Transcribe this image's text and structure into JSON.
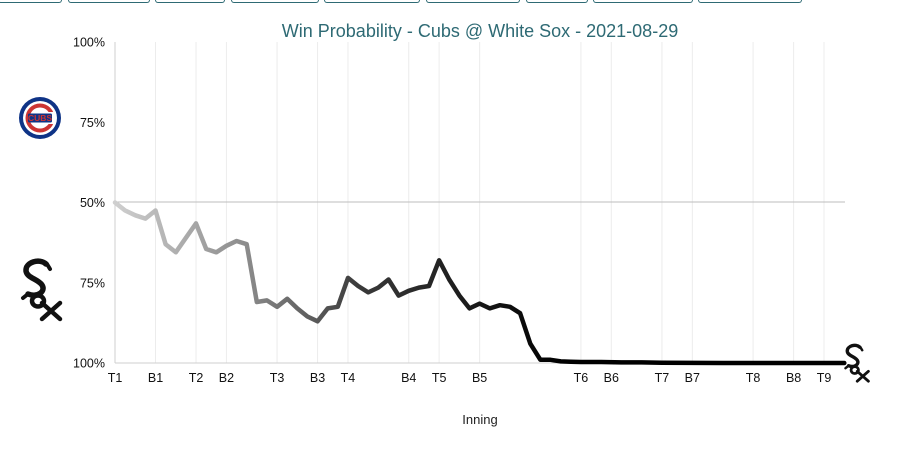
{
  "chart_data": {
    "type": "line",
    "title": "Win Probability - Cubs @ White Sox - 2021-08-29",
    "xlabel": "Inning",
    "ylabel": "",
    "yticks": [
      "100%",
      "75%",
      "50%",
      "75%",
      "100%"
    ],
    "ylim": [
      -50,
      50
    ],
    "xlim": [
      0,
      70
    ],
    "grid": "vertical at half-innings",
    "legend": "team logos at left (Cubs top, White Sox bottom); White Sox logo at line end",
    "xticks": [
      {
        "x": 0,
        "label": "T1"
      },
      {
        "x": 4,
        "label": "B1"
      },
      {
        "x": 8,
        "label": "T2"
      },
      {
        "x": 11,
        "label": "B2"
      },
      {
        "x": 16,
        "label": "T3"
      },
      {
        "x": 20,
        "label": "B3"
      },
      {
        "x": 23,
        "label": "T4"
      },
      {
        "x": 29,
        "label": "B4"
      },
      {
        "x": 32,
        "label": "T5"
      },
      {
        "x": 36,
        "label": "B5"
      },
      {
        "x": 46,
        "label": "T6"
      },
      {
        "x": 49,
        "label": "B6"
      },
      {
        "x": 54,
        "label": "T7"
      },
      {
        "x": 57,
        "label": "B7"
      },
      {
        "x": 63,
        "label": "T8"
      },
      {
        "x": 67,
        "label": "B8"
      },
      {
        "x": 70,
        "label": "T9"
      }
    ],
    "series": [
      {
        "values": [
          [
            0,
            0
          ],
          [
            1,
            -2.5
          ],
          [
            2,
            -4
          ],
          [
            3,
            -5
          ],
          [
            4,
            -2.5
          ],
          [
            5,
            -13
          ],
          [
            6,
            -15.5
          ],
          [
            7,
            -11
          ],
          [
            8,
            -6.5
          ],
          [
            9,
            -14.5
          ],
          [
            10,
            -15.5
          ],
          [
            11,
            -13.5
          ],
          [
            12,
            -12
          ],
          [
            13,
            -13
          ],
          [
            14,
            -31
          ],
          [
            15,
            -30.5
          ],
          [
            16,
            -32.5
          ],
          [
            17,
            -30
          ],
          [
            18,
            -33
          ],
          [
            19,
            -35.5
          ],
          [
            20,
            -37
          ],
          [
            21,
            -33
          ],
          [
            22,
            -32.5
          ],
          [
            23,
            -23.5
          ],
          [
            24,
            -26
          ],
          [
            25,
            -28
          ],
          [
            26,
            -26.5
          ],
          [
            27,
            -24
          ],
          [
            28,
            -29
          ],
          [
            29,
            -27.5
          ],
          [
            30,
            -26.5
          ],
          [
            31,
            -26
          ],
          [
            32,
            -18
          ],
          [
            33,
            -24
          ],
          [
            34,
            -29
          ],
          [
            35,
            -33
          ],
          [
            36,
            -31.5
          ],
          [
            37,
            -33
          ],
          [
            38,
            -32
          ],
          [
            39,
            -32.5
          ],
          [
            40,
            -34.5
          ],
          [
            41,
            -44
          ],
          [
            42,
            -49
          ],
          [
            43,
            -49
          ],
          [
            44,
            -49.5
          ],
          [
            45,
            -49.6
          ],
          [
            46,
            -49.7
          ],
          [
            48,
            -49.7
          ],
          [
            50,
            -49.8
          ],
          [
            52,
            -49.8
          ],
          [
            54,
            -49.9
          ],
          [
            60,
            -50
          ],
          [
            66,
            -50
          ],
          [
            72,
            -50
          ]
        ]
      }
    ]
  },
  "logos": {
    "home_team_icon": "white-sox-logo-icon",
    "away_team_icon": "cubs-logo-icon",
    "cubs_wordmark": "CUBS",
    "cubs_blue": "#0e3386",
    "cubs_red": "#cc3433",
    "sox_black": "#111111"
  },
  "colors": {
    "title": "#2e6a74",
    "line_start": "#c8c8c8",
    "line_end": "#000000",
    "grid": "#e8e8e8",
    "baseline": "#bdbdbd"
  }
}
